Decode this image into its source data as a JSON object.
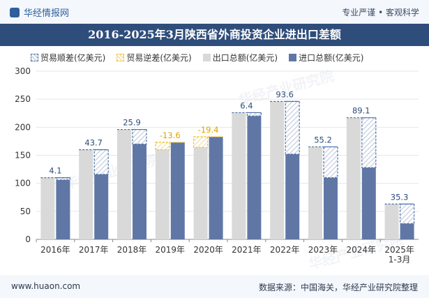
{
  "header": {
    "brand": "华经情报网",
    "slogan": "专业严谨 • 客观科学"
  },
  "watermark": "华经产业研究院",
  "footer": {
    "site": "www.huaon.com",
    "source": "数据来源：中国海关，华经产业研究院整理"
  },
  "colors": {
    "export": "#d9d9d9",
    "import": "#6077a6",
    "surplus_border": "#4c6fa8",
    "deficit_border": "#f2c12e"
  },
  "chart_data": {
    "type": "bar",
    "title": "2016-2025年3月陕西省外商投资企业进出口差额",
    "categories": [
      "2016年",
      "2017年",
      "2018年",
      "2019年",
      "2020年",
      "2021年",
      "2022年",
      "2023年",
      "2024年",
      "2025年\n1-3月"
    ],
    "series": [
      {
        "name": "出口总额(亿美元)",
        "values": [
          110,
          160,
          196,
          160,
          164,
          226,
          246,
          165,
          217,
          63
        ]
      },
      {
        "name": "进口总额(亿美元)",
        "values": [
          106,
          116,
          170,
          173,
          183,
          220,
          152,
          110,
          128,
          28
        ]
      }
    ],
    "balance": {
      "surplus_name": "贸易顺差(亿美元)",
      "deficit_name": "贸易逆差(亿美元)",
      "labels": [
        "4.1",
        "43.7",
        "25.9",
        "-13.6",
        "-19.4",
        "6.4",
        "93.6",
        "55.2",
        "89.1",
        "35.3"
      ]
    },
    "yticks": [
      0,
      50,
      100,
      150,
      200,
      250,
      300
    ],
    "ylim": [
      0,
      300
    ],
    "legend_position": "top-left"
  }
}
